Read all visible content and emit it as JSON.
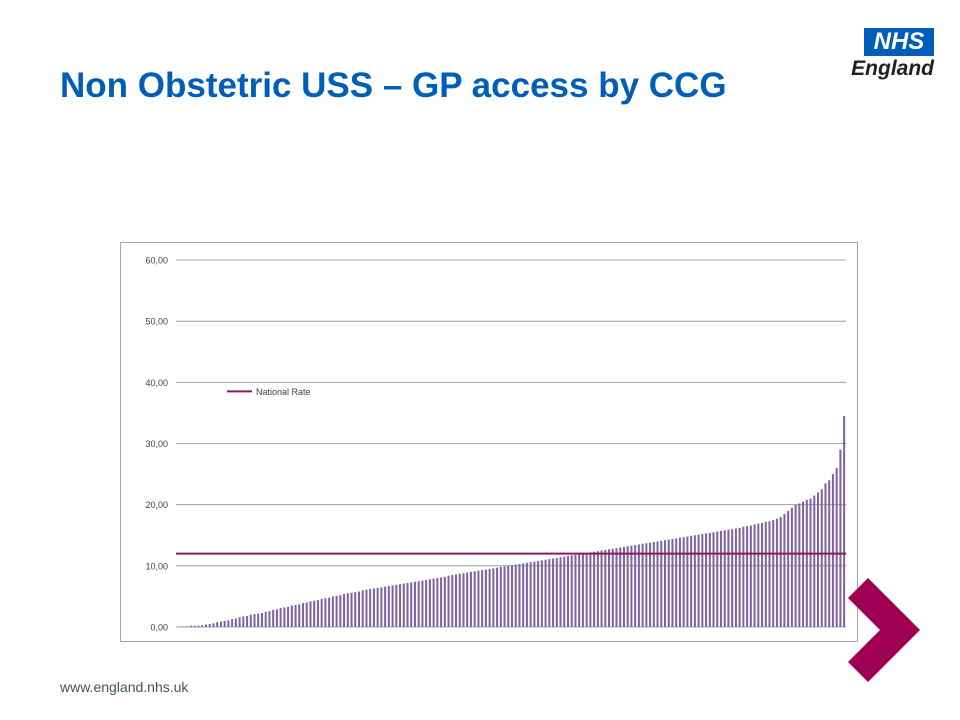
{
  "header": {
    "title": "Non Obstetric USS – GP access by CCG"
  },
  "logo": {
    "box_text": "NHS",
    "sub_text": "England"
  },
  "footer": {
    "url": "www.england.nhs.uk"
  },
  "colors": {
    "title": "#005eb8",
    "bars": "#8064a2",
    "national_line": "#8b1a5c",
    "arrow": "#a00054"
  },
  "icons": {
    "arrow": "chevron-right-arrow-icon"
  },
  "chart_data": {
    "type": "bar",
    "title": "",
    "xlabel": "",
    "ylabel": "",
    "ylim": [
      0,
      60
    ],
    "yticks": [
      "0,00",
      "10,00",
      "20,00",
      "30,00",
      "40,00",
      "50,00",
      "60,00"
    ],
    "grid": true,
    "legend_position": "top-left",
    "series": [
      {
        "name": "",
        "values": [
          0.1,
          0.1,
          0.1,
          0.2,
          0.2,
          0.2,
          0.3,
          0.4,
          0.5,
          0.6,
          0.8,
          0.9,
          1.0,
          1.1,
          1.3,
          1.4,
          1.6,
          1.7,
          1.8,
          2.0,
          2.1,
          2.2,
          2.3,
          2.5,
          2.6,
          2.8,
          2.9,
          3.1,
          3.2,
          3.3,
          3.5,
          3.6,
          3.7,
          3.9,
          4.0,
          4.2,
          4.3,
          4.4,
          4.6,
          4.7,
          4.8,
          5.0,
          5.1,
          5.2,
          5.4,
          5.5,
          5.6,
          5.7,
          5.8,
          6.0,
          6.1,
          6.2,
          6.3,
          6.4,
          6.5,
          6.6,
          6.7,
          6.8,
          6.9,
          7.0,
          7.1,
          7.2,
          7.3,
          7.4,
          7.5,
          7.6,
          7.7,
          7.8,
          7.9,
          8.0,
          8.1,
          8.2,
          8.4,
          8.5,
          8.6,
          8.7,
          8.8,
          8.9,
          9.0,
          9.1,
          9.2,
          9.3,
          9.4,
          9.5,
          9.6,
          9.7,
          9.8,
          9.9,
          10.0,
          10.1,
          10.2,
          10.3,
          10.4,
          10.5,
          10.6,
          10.7,
          10.8,
          10.9,
          11.0,
          11.1,
          11.2,
          11.3,
          11.4,
          11.5,
          11.6,
          11.7,
          11.8,
          11.9,
          12.0,
          12.1,
          12.2,
          12.3,
          12.4,
          12.5,
          12.6,
          12.7,
          12.8,
          12.9,
          13.0,
          13.1,
          13.2,
          13.3,
          13.4,
          13.5,
          13.6,
          13.7,
          13.8,
          13.9,
          14.0,
          14.1,
          14.2,
          14.3,
          14.4,
          14.5,
          14.6,
          14.7,
          14.8,
          14.9,
          15.0,
          15.1,
          15.2,
          15.3,
          15.4,
          15.5,
          15.6,
          15.7,
          15.8,
          15.9,
          16.0,
          16.1,
          16.2,
          16.4,
          16.5,
          16.6,
          16.8,
          16.9,
          17.0,
          17.2,
          17.3,
          17.5,
          17.7,
          18.0,
          18.5,
          19.0,
          19.5,
          20.0,
          20.2,
          20.5,
          20.8,
          21.0,
          21.5,
          22.0,
          22.5,
          23.5,
          24.0,
          25.0,
          26.0,
          29.0,
          34.5
        ]
      }
    ],
    "national_rate": {
      "name": "National Rate",
      "value": 12.0
    }
  }
}
